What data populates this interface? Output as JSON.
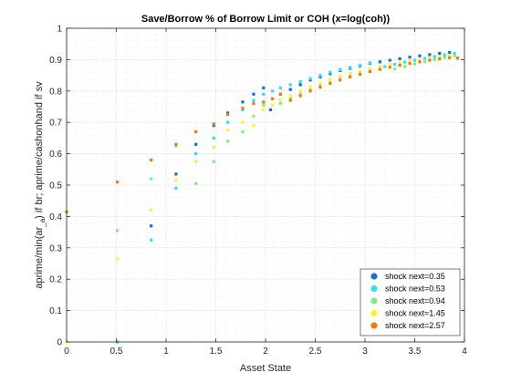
{
  "chart_data": {
    "type": "scatter",
    "title": "Save/Borrow % of Borrow Limit or COH (x=log(coh))",
    "xlabel": "Asset State",
    "ylabel_main": "aprime/min(ar",
    "ylabel_sub1": "_a",
    "ylabel_mid": ") if br; aprime/cashonhand if sv",
    "xlim": [
      0,
      4
    ],
    "ylim": [
      0,
      1
    ],
    "xticks": [
      "0",
      "0.5",
      "1",
      "1.5",
      "2",
      "2.5",
      "3",
      "3.5",
      "4"
    ],
    "yticks": [
      "0",
      "0.1",
      "0.2",
      "0.3",
      "0.4",
      "0.5",
      "0.6",
      "0.7",
      "0.8",
      "0.9",
      "1"
    ],
    "grid": "on (major and minor, dotted)",
    "legend_position": "bottom-right",
    "series": [
      {
        "name": "shock next=0.35",
        "color": "#1170d8",
        "points": [
          [
            0.51,
            0.0
          ],
          [
            0.85,
            0.37
          ],
          [
            1.1,
            0.535
          ],
          [
            1.3,
            0.63
          ],
          [
            1.48,
            0.69
          ],
          [
            1.62,
            0.73
          ],
          [
            1.77,
            0.765
          ],
          [
            1.88,
            0.79
          ],
          [
            1.98,
            0.81
          ],
          [
            2.05,
            0.74
          ],
          [
            2.15,
            0.79
          ],
          [
            2.25,
            0.805
          ],
          [
            2.35,
            0.82
          ],
          [
            2.45,
            0.835
          ],
          [
            2.55,
            0.845
          ],
          [
            2.65,
            0.855
          ],
          [
            2.75,
            0.865
          ],
          [
            2.85,
            0.872
          ],
          [
            2.95,
            0.88
          ],
          [
            3.05,
            0.888
          ],
          [
            3.15,
            0.893
          ],
          [
            3.25,
            0.898
          ],
          [
            3.35,
            0.903
          ],
          [
            3.45,
            0.908
          ],
          [
            3.55,
            0.912
          ],
          [
            3.65,
            0.916
          ],
          [
            3.75,
            0.92
          ],
          [
            3.85,
            0.923
          ]
        ]
      },
      {
        "name": "shock next=0.53",
        "color": "#2ee0f0",
        "points": [
          [
            0.51,
            0.0
          ],
          [
            0.85,
            0.325
          ],
          [
            1.1,
            0.49
          ],
          [
            1.3,
            0.6
          ],
          [
            1.48,
            0.65
          ],
          [
            1.62,
            0.7
          ],
          [
            1.77,
            0.74
          ],
          [
            1.88,
            0.77
          ],
          [
            1.98,
            0.79
          ],
          [
            2.07,
            0.8
          ],
          [
            2.15,
            0.81
          ],
          [
            2.25,
            0.82
          ],
          [
            2.35,
            0.83
          ],
          [
            2.45,
            0.84
          ],
          [
            2.55,
            0.85
          ],
          [
            2.65,
            0.86
          ],
          [
            2.75,
            0.868
          ],
          [
            2.85,
            0.875
          ],
          [
            2.95,
            0.882
          ],
          [
            3.05,
            0.89
          ],
          [
            3.2,
            0.878
          ],
          [
            3.3,
            0.885
          ],
          [
            3.4,
            0.892
          ],
          [
            3.5,
            0.898
          ],
          [
            3.6,
            0.904
          ],
          [
            3.7,
            0.91
          ],
          [
            3.8,
            0.915
          ],
          [
            3.9,
            0.92
          ]
        ]
      },
      {
        "name": "shock next=0.94",
        "color": "#7ef07a",
        "points": [
          [
            0.51,
            0.355
          ],
          [
            0.85,
            0.52
          ],
          [
            1.1,
            0.625
          ],
          [
            1.3,
            0.505
          ],
          [
            1.48,
            0.575
          ],
          [
            1.62,
            0.64
          ],
          [
            1.77,
            0.67
          ],
          [
            1.88,
            0.72
          ],
          [
            1.98,
            0.755
          ],
          [
            2.07,
            0.775
          ],
          [
            2.15,
            0.76
          ],
          [
            2.25,
            0.775
          ],
          [
            2.35,
            0.79
          ],
          [
            2.45,
            0.805
          ],
          [
            2.55,
            0.82
          ],
          [
            2.65,
            0.832
          ],
          [
            2.75,
            0.845
          ],
          [
            2.85,
            0.855
          ],
          [
            2.95,
            0.862
          ],
          [
            3.05,
            0.87
          ],
          [
            3.15,
            0.878
          ],
          [
            3.3,
            0.87
          ],
          [
            3.4,
            0.878
          ],
          [
            3.5,
            0.886
          ],
          [
            3.6,
            0.893
          ],
          [
            3.7,
            0.9
          ],
          [
            3.8,
            0.907
          ],
          [
            3.9,
            0.912
          ]
        ]
      },
      {
        "name": "shock next=1.45",
        "color": "#fff22a",
        "points": [
          [
            0.0,
            0.0
          ],
          [
            0.51,
            0.265
          ],
          [
            0.85,
            0.42
          ],
          [
            1.1,
            0.515
          ],
          [
            1.3,
            0.575
          ],
          [
            1.48,
            0.62
          ],
          [
            1.62,
            0.675
          ],
          [
            1.77,
            0.7
          ],
          [
            1.88,
            0.69
          ],
          [
            1.98,
            0.74
          ],
          [
            2.07,
            0.755
          ],
          [
            2.15,
            0.77
          ],
          [
            2.25,
            0.785
          ],
          [
            2.35,
            0.8
          ],
          [
            2.45,
            0.812
          ],
          [
            2.55,
            0.825
          ],
          [
            2.65,
            0.836
          ],
          [
            2.75,
            0.846
          ],
          [
            2.85,
            0.855
          ],
          [
            2.95,
            0.863
          ],
          [
            3.05,
            0.87
          ],
          [
            3.15,
            0.877
          ],
          [
            3.25,
            0.884
          ],
          [
            3.35,
            0.89
          ],
          [
            3.45,
            0.896
          ],
          [
            3.55,
            0.901
          ],
          [
            3.65,
            0.906
          ],
          [
            3.75,
            0.91
          ],
          [
            3.85,
            0.914
          ]
        ]
      },
      {
        "name": "shock next=2.57",
        "color": "#f07a12",
        "points": [
          [
            0.0,
            0.415
          ],
          [
            0.51,
            0.51
          ],
          [
            0.85,
            0.58
          ],
          [
            1.1,
            0.63
          ],
          [
            1.3,
            0.67
          ],
          [
            1.48,
            0.695
          ],
          [
            1.62,
            0.725
          ],
          [
            1.77,
            0.745
          ],
          [
            1.88,
            0.76
          ],
          [
            1.98,
            0.765
          ],
          [
            2.07,
            0.775
          ],
          [
            2.15,
            0.79
          ],
          [
            2.25,
            0.77
          ],
          [
            2.35,
            0.785
          ],
          [
            2.45,
            0.8
          ],
          [
            2.55,
            0.812
          ],
          [
            2.65,
            0.824
          ],
          [
            2.75,
            0.835
          ],
          [
            2.85,
            0.845
          ],
          [
            2.95,
            0.853
          ],
          [
            3.05,
            0.862
          ],
          [
            3.15,
            0.869
          ],
          [
            3.25,
            0.876
          ],
          [
            3.35,
            0.882
          ],
          [
            3.45,
            0.888
          ],
          [
            3.55,
            0.893
          ],
          [
            3.65,
            0.898
          ],
          [
            3.75,
            0.902
          ],
          [
            3.85,
            0.906
          ],
          [
            3.93,
            0.905
          ]
        ]
      }
    ]
  }
}
